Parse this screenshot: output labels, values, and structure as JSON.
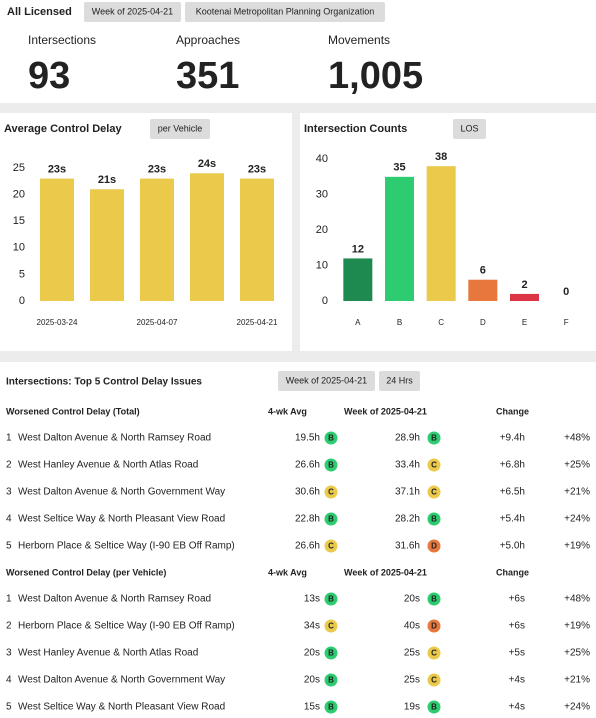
{
  "header": {
    "title": "All Licensed",
    "chips": [
      "Week of 2025-04-21",
      "Kootenai Metropolitan Planning Organization"
    ]
  },
  "kpis": [
    {
      "label": "Intersections",
      "value": "93"
    },
    {
      "label": "Approaches",
      "value": "351"
    },
    {
      "label": "Movements",
      "value": "1,005"
    }
  ],
  "chart_data": [
    {
      "type": "bar",
      "title": "Average Control Delay",
      "chip": "per Vehicle",
      "categories": [
        "2025-03-24",
        null,
        "2025-04-07",
        null,
        "2025-04-21"
      ],
      "values": [
        23,
        21,
        23,
        24,
        23
      ],
      "value_labels": [
        "23s",
        "21s",
        "23s",
        "24s",
        "23s"
      ],
      "color": "#ebc94b",
      "ylim": [
        0,
        28
      ],
      "yticks": [
        0,
        5,
        10,
        15,
        20,
        25
      ]
    },
    {
      "type": "bar",
      "title": "Intersection Counts",
      "chip": "LOS",
      "categories": [
        "A",
        "B",
        "C",
        "D",
        "E",
        "F"
      ],
      "values": [
        12,
        35,
        38,
        6,
        2,
        0
      ],
      "colors": [
        "#1e8a4f",
        "#2ecc71",
        "#ebc94b",
        "#e8773d",
        "#dc3545",
        "#999999"
      ],
      "ylim": [
        0,
        42
      ],
      "yticks": [
        0,
        10,
        20,
        30,
        40
      ]
    }
  ],
  "table": {
    "title": "Intersections: Top 5 Control Delay Issues",
    "chips": [
      "Week of 2025-04-21",
      "24 Hrs"
    ],
    "los_colors": {
      "B": "#2ecc71",
      "C": "#ebc94b",
      "D": "#e8773d"
    },
    "groups": [
      {
        "title": "Worsened Control Delay (Total)",
        "columns": [
          "4-wk Avg",
          "Week of 2025-04-21",
          "Change"
        ],
        "rows": [
          [
            "1",
            "West Dalton Avenue & North Ramsey Road",
            "19.5h",
            "B",
            "28.9h",
            "B",
            "+9.4h",
            "+48%"
          ],
          [
            "2",
            "West Hanley Avenue & North Atlas Road",
            "26.6h",
            "B",
            "33.4h",
            "C",
            "+6.8h",
            "+25%"
          ],
          [
            "3",
            "West Dalton Avenue & North Government Way",
            "30.6h",
            "C",
            "37.1h",
            "C",
            "+6.5h",
            "+21%"
          ],
          [
            "4",
            "West Seltice Way & North Pleasant View Road",
            "22.8h",
            "B",
            "28.2h",
            "B",
            "+5.4h",
            "+24%"
          ],
          [
            "5",
            "Herborn Place & Seltice Way (I-90 EB Off Ramp)",
            "26.6h",
            "C",
            "31.6h",
            "D",
            "+5.0h",
            "+19%"
          ]
        ]
      },
      {
        "title": "Worsened Control Delay (per Vehicle)",
        "columns": [
          "4-wk Avg",
          "Week of 2025-04-21",
          "Change"
        ],
        "rows": [
          [
            "1",
            "West Dalton Avenue & North Ramsey Road",
            "13s",
            "B",
            "20s",
            "B",
            "+6s",
            "+48%"
          ],
          [
            "2",
            "Herborn Place & Seltice Way (I-90 EB Off Ramp)",
            "34s",
            "C",
            "40s",
            "D",
            "+6s",
            "+19%"
          ],
          [
            "3",
            "West Hanley Avenue & North Atlas Road",
            "20s",
            "B",
            "25s",
            "C",
            "+5s",
            "+25%"
          ],
          [
            "4",
            "West Dalton Avenue & North Government Way",
            "20s",
            "B",
            "25s",
            "C",
            "+4s",
            "+21%"
          ],
          [
            "5",
            "West Seltice Way & North Pleasant View Road",
            "15s",
            "B",
            "19s",
            "B",
            "+4s",
            "+24%"
          ]
        ]
      }
    ]
  }
}
